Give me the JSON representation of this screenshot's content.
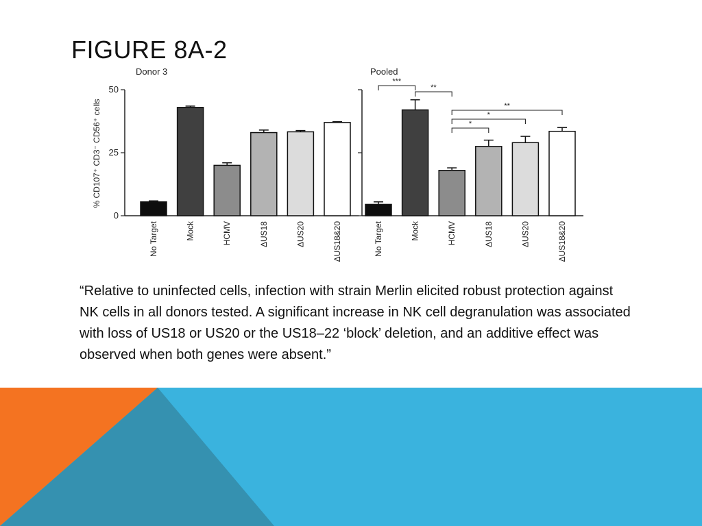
{
  "slide": {
    "title": "FIGURE 8A-2",
    "quote": "“Relative to uninfected cells, infection with strain Merlin elicited robust protection against NK cells in all donors tested. A significant increase in NK cell degranulation was associated with loss of US18 or US20 or the US18–22 ‘block’ deletion, and an additive effect was observed when both genes were absent.”"
  },
  "colors": {
    "orange": "#f47321",
    "blue": "#3ab3de",
    "blue_dark": "#3591b0",
    "bar_fills": [
      "#0d0d0d",
      "#404040",
      "#8c8c8c",
      "#b3b3b3",
      "#dcdcdc",
      "#ffffff"
    ]
  },
  "chart_data": [
    {
      "type": "bar",
      "title": "Donor 3",
      "ylabel": "% CD107⁺ CD3⁻ CD56⁺ cells",
      "categories": [
        "No Target",
        "Mock",
        "HCMV",
        "ΔUS18",
        "ΔUS20",
        "ΔUS18&20"
      ],
      "values": [
        5.5,
        43,
        20,
        33,
        33.3,
        37
      ],
      "errors": [
        0.4,
        0.5,
        1.0,
        1.0,
        0.5,
        0.3
      ],
      "ylim": [
        0,
        50
      ],
      "yticks": [
        0,
        25,
        50
      ],
      "grid": false
    },
    {
      "type": "bar",
      "title": "Pooled",
      "categories": [
        "No Target",
        "Mock",
        "HCMV",
        "ΔUS18",
        "ΔUS20",
        "ΔUS18&20"
      ],
      "values": [
        4.5,
        42,
        18,
        27.5,
        29,
        33.5
      ],
      "errors": [
        1.0,
        4.0,
        1.0,
        2.5,
        2.5,
        1.5
      ],
      "ylim": [
        0,
        50
      ],
      "grid": false,
      "significance": [
        {
          "from": 0,
          "to": 1,
          "label": "***"
        },
        {
          "from": 1,
          "to": 2,
          "label": "**"
        },
        {
          "from": 2,
          "to": 5,
          "label": "**"
        },
        {
          "from": 2,
          "to": 4,
          "label": "*"
        },
        {
          "from": 2,
          "to": 3,
          "label": "*"
        }
      ]
    }
  ]
}
